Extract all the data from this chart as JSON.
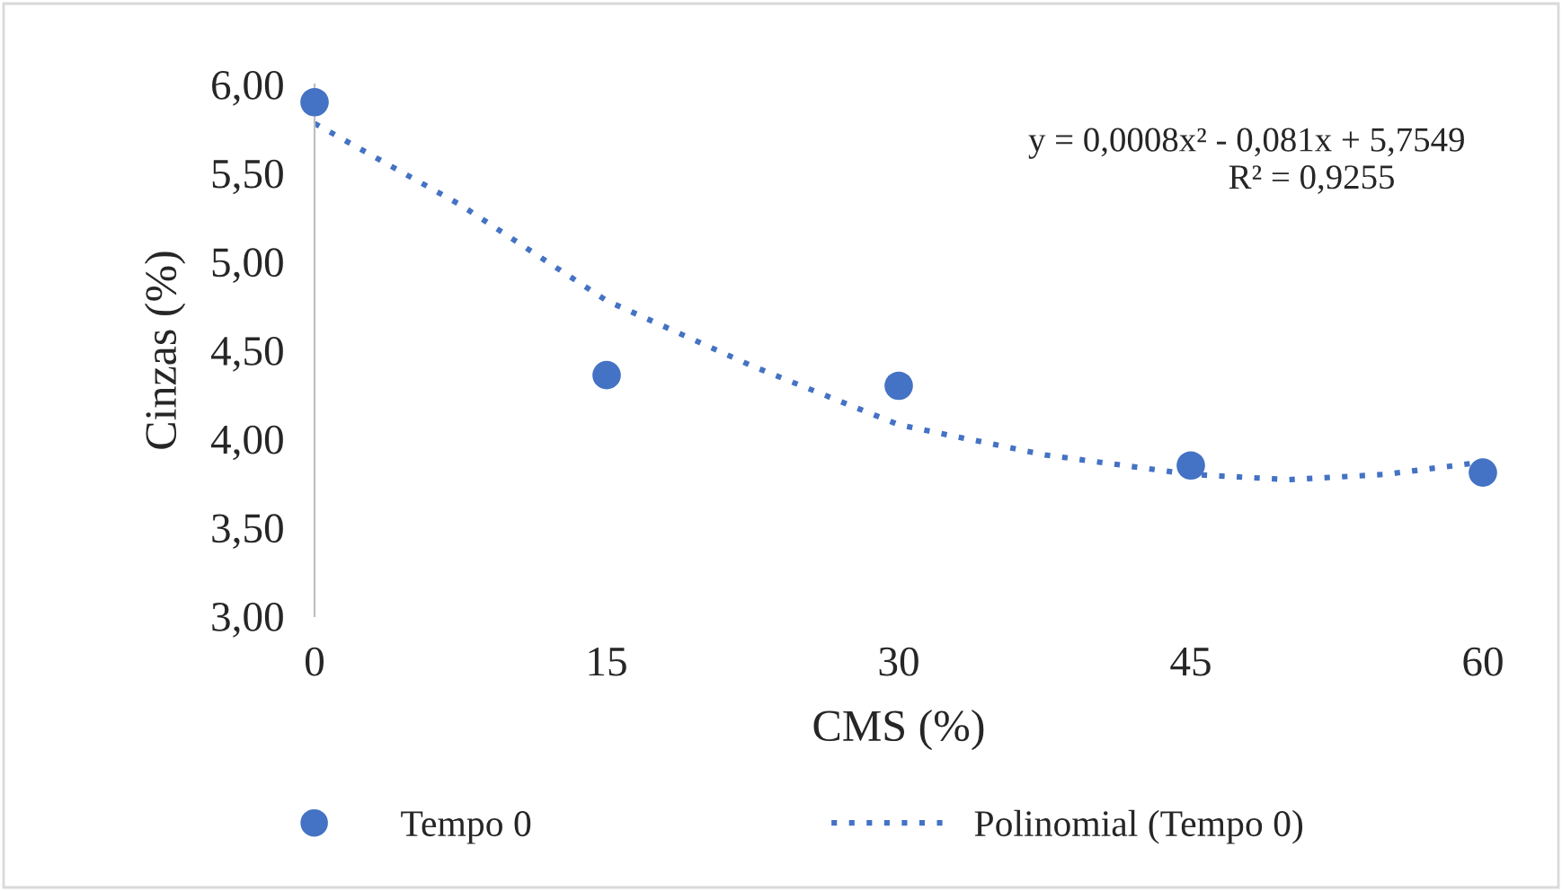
{
  "chart_data": {
    "type": "scatter",
    "xlabel": "CMS (%)",
    "ylabel": "Cinzas (%)",
    "x": [
      0,
      15,
      30,
      45,
      60
    ],
    "series": [
      {
        "name": "Tempo 0",
        "color": "#4472c4",
        "marker": "circle",
        "values": [
          5.9,
          4.36,
          4.3,
          3.85,
          3.81
        ]
      },
      {
        "name": "Polinomial (Tempo 0)",
        "type": "line",
        "color": "#4472c4",
        "line_style": "dotted",
        "marker": "none",
        "x": [
          0,
          7.5,
          15,
          22.5,
          30,
          37.5,
          45,
          50,
          55,
          60
        ],
        "values": [
          5.78,
          5.32,
          4.78,
          4.41,
          4.08,
          3.91,
          3.8,
          3.77,
          3.8,
          3.87
        ]
      }
    ],
    "xlim": [
      0,
      60
    ],
    "xticks": [
      0,
      15,
      30,
      45,
      60
    ],
    "ylim": [
      3.0,
      6.0
    ],
    "yticks": [
      {
        "value": 3.0,
        "label": "3,00"
      },
      {
        "value": 3.5,
        "label": "3,50"
      },
      {
        "value": 4.0,
        "label": "4,00"
      },
      {
        "value": 4.5,
        "label": "4,50"
      },
      {
        "value": 5.0,
        "label": "5,00"
      },
      {
        "value": 5.5,
        "label": "5,50"
      },
      {
        "value": 6.0,
        "label": "6,00"
      }
    ],
    "grid": false,
    "legend": "bottom",
    "annotations": [
      "y = 0,0008x² - 0,081x + 5,7549",
      "R² = 0,9255"
    ]
  }
}
